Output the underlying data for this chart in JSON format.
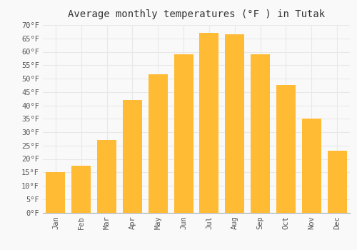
{
  "title": "Average monthly temperatures (°F ) in Tutak",
  "months": [
    "Jan",
    "Feb",
    "Mar",
    "Apr",
    "May",
    "Jun",
    "Jul",
    "Aug",
    "Sep",
    "Oct",
    "Nov",
    "Dec"
  ],
  "values": [
    15,
    17.5,
    27,
    42,
    51.5,
    59,
    67,
    66.5,
    59,
    47.5,
    35,
    23
  ],
  "bar_color_top": "#FFBB33",
  "bar_color_bottom": "#F5A000",
  "ylim": [
    0,
    70
  ],
  "yticks": [
    0,
    5,
    10,
    15,
    20,
    25,
    30,
    35,
    40,
    45,
    50,
    55,
    60,
    65,
    70
  ],
  "ytick_labels": [
    "0°F",
    "5°F",
    "10°F",
    "15°F",
    "20°F",
    "25°F",
    "30°F",
    "35°F",
    "40°F",
    "45°F",
    "50°F",
    "55°F",
    "60°F",
    "65°F",
    "70°F"
  ],
  "title_fontsize": 10,
  "tick_fontsize": 7.5,
  "background_color": "#f9f9f9",
  "grid_color": "#e8e8e8",
  "bar_width": 0.75
}
